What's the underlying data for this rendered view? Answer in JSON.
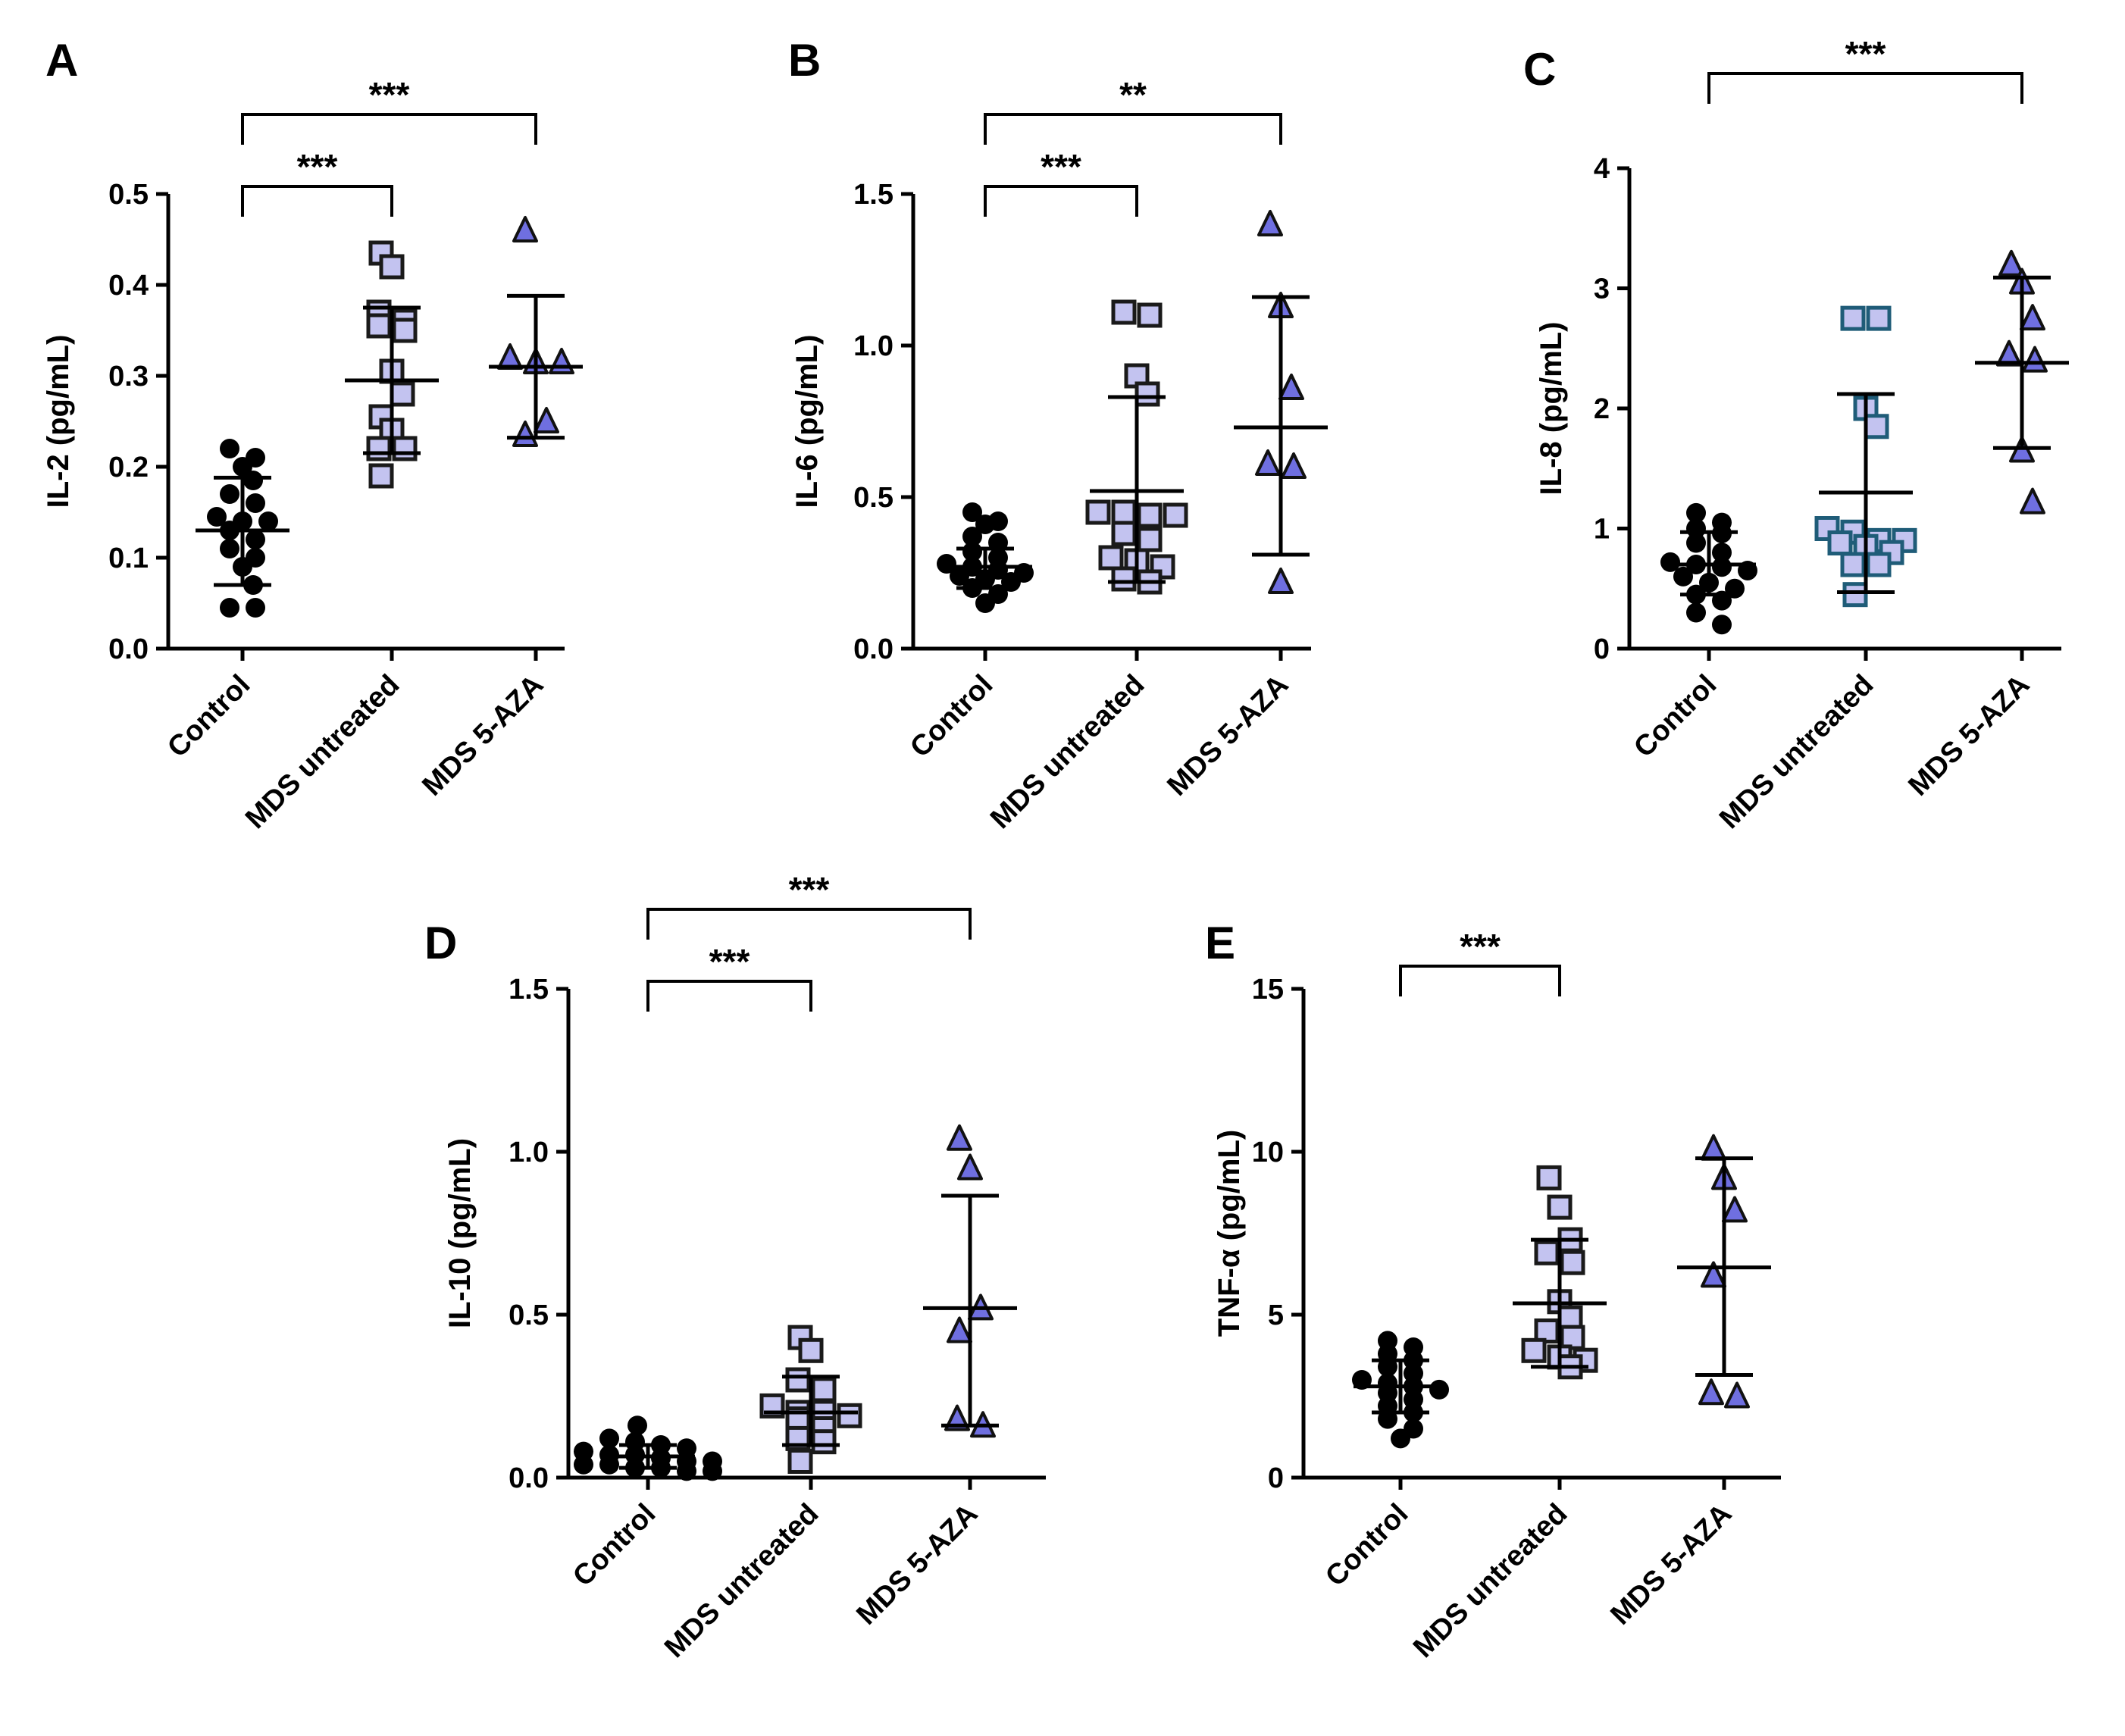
{
  "figure": {
    "background": "#ffffff"
  },
  "colors": {
    "axis": "#000000",
    "control_fill": "#000000",
    "mds_untreated_fill": "#c3c3f0",
    "mds_untreated_stroke": "#1a1a1a",
    "mds_untreated_stroke_c": "#1f5c78",
    "aza_fill": "#6f6fe0",
    "aza_stroke": "#111111"
  },
  "chart_data": [
    {
      "panel": "A",
      "type": "scatter",
      "ylabel": "IL-2 (pg/mL)",
      "ylim": [
        0,
        0.5
      ],
      "yticks": [
        0.0,
        0.1,
        0.2,
        0.3,
        0.4,
        0.5
      ],
      "ytick_labels": [
        "0.0",
        "0.1",
        "0.2",
        "0.3",
        "0.4",
        "0.5"
      ],
      "categories": [
        "Control",
        "MDS untreated",
        "MDS 5-AZA"
      ],
      "series": [
        {
          "name": "Control",
          "marker": "circle",
          "mean": 0.13,
          "sd_low": 0.07,
          "sd_high": 0.188,
          "points": [
            0.22,
            0.21,
            0.2,
            0.185,
            0.17,
            0.16,
            0.145,
            0.14,
            0.14,
            0.13,
            0.12,
            0.11,
            0.1,
            0.09,
            0.07,
            0.045,
            0.045
          ]
        },
        {
          "name": "MDS untreated",
          "marker": "square",
          "mean": 0.295,
          "sd_low": 0.215,
          "sd_high": 0.375,
          "points": [
            0.435,
            0.42,
            0.37,
            0.355,
            0.36,
            0.35,
            0.305,
            0.28,
            0.255,
            0.24,
            0.22,
            0.22,
            0.19
          ]
        },
        {
          "name": "MDS 5-AZA",
          "marker": "triangle",
          "mean": 0.31,
          "sd_low": 0.232,
          "sd_high": 0.388,
          "points": [
            0.46,
            0.32,
            0.315,
            0.315,
            0.25,
            0.235
          ]
        }
      ],
      "significance": [
        {
          "from": 0,
          "to": 1,
          "label": "***"
        },
        {
          "from": 0,
          "to": 2,
          "label": "***"
        }
      ]
    },
    {
      "panel": "B",
      "type": "scatter",
      "ylabel": "IL-6 (pg/mL)",
      "ylim": [
        0,
        1.5
      ],
      "yticks": [
        0.0,
        0.5,
        1.0,
        1.5
      ],
      "ytick_labels": [
        "0.0",
        "0.5",
        "1.0",
        "1.5"
      ],
      "categories": [
        "Control",
        "MDS untreated",
        "MDS 5-AZA"
      ],
      "series": [
        {
          "name": "Control",
          "marker": "circle",
          "mean": 0.27,
          "sd_low": 0.2,
          "sd_high": 0.33,
          "points": [
            0.45,
            0.42,
            0.41,
            0.37,
            0.35,
            0.32,
            0.3,
            0.28,
            0.27,
            0.26,
            0.25,
            0.24,
            0.23,
            0.22,
            0.2,
            0.18,
            0.15
          ]
        },
        {
          "name": "MDS untreated",
          "marker": "square",
          "mean": 0.52,
          "sd_low": 0.22,
          "sd_high": 0.83,
          "points": [
            1.11,
            1.1,
            0.9,
            0.84,
            0.44,
            0.45,
            0.45,
            0.44,
            0.38,
            0.36,
            0.3,
            0.29,
            0.27,
            0.23,
            0.22
          ]
        },
        {
          "name": "MDS 5-AZA",
          "marker": "triangle",
          "mean": 0.73,
          "sd_low": 0.31,
          "sd_high": 1.16,
          "points": [
            1.4,
            1.13,
            0.86,
            0.61,
            0.6,
            0.22
          ]
        }
      ],
      "significance": [
        {
          "from": 0,
          "to": 1,
          "label": "***"
        },
        {
          "from": 0,
          "to": 2,
          "label": "**"
        }
      ]
    },
    {
      "panel": "C",
      "type": "scatter",
      "ylabel": "IL-8 (pg/mL)",
      "ylim": [
        0,
        4
      ],
      "yticks": [
        0,
        1,
        2,
        3,
        4
      ],
      "ytick_labels": [
        "0",
        "1",
        "2",
        "3",
        "4"
      ],
      "categories": [
        "Control",
        "MDS untreated",
        "MDS 5-AZA"
      ],
      "series": [
        {
          "name": "Control",
          "marker": "circle",
          "mean": 0.7,
          "sd_low": 0.45,
          "sd_high": 0.97,
          "points": [
            1.13,
            1.05,
            1.0,
            0.96,
            0.88,
            0.8,
            0.72,
            0.7,
            0.68,
            0.65,
            0.6,
            0.55,
            0.5,
            0.45,
            0.4,
            0.3,
            0.2
          ]
        },
        {
          "name": "MDS untreated",
          "marker": "square",
          "mean": 1.3,
          "sd_low": 0.47,
          "sd_high": 2.12,
          "points": [
            2.75,
            2.75,
            2.0,
            1.85,
            1.0,
            0.97,
            0.9,
            0.9,
            0.88,
            0.85,
            0.8,
            0.7,
            0.7,
            0.45
          ]
        },
        {
          "name": "MDS 5-AZA",
          "marker": "triangle",
          "mean": 2.38,
          "sd_low": 1.67,
          "sd_high": 3.09,
          "points": [
            3.2,
            3.05,
            2.75,
            2.45,
            2.4,
            1.65,
            1.22
          ]
        }
      ],
      "significance": [
        {
          "from": 0,
          "to": 2,
          "label": "***"
        }
      ]
    },
    {
      "panel": "D",
      "type": "scatter",
      "ylabel": "IL-10 (pg/mL)",
      "ylim": [
        0,
        1.5
      ],
      "yticks": [
        0.0,
        0.5,
        1.0,
        1.5
      ],
      "ytick_labels": [
        "0.0",
        "0.5",
        "1.0",
        "1.5"
      ],
      "categories": [
        "Control",
        "MDS untreated",
        "MDS 5-AZA"
      ],
      "series": [
        {
          "name": "Control",
          "marker": "circle",
          "mean": 0.065,
          "sd_low": 0.03,
          "sd_high": 0.1,
          "points": [
            0.16,
            0.12,
            0.11,
            0.1,
            0.09,
            0.08,
            0.07,
            0.07,
            0.06,
            0.05,
            0.05,
            0.04,
            0.04,
            0.03,
            0.03,
            0.02,
            0.02
          ]
        },
        {
          "name": "MDS untreated",
          "marker": "square",
          "mean": 0.2,
          "sd_low": 0.1,
          "sd_high": 0.31,
          "points": [
            0.43,
            0.39,
            0.3,
            0.27,
            0.22,
            0.2,
            0.2,
            0.19,
            0.18,
            0.15,
            0.12,
            0.11,
            0.05
          ]
        },
        {
          "name": "MDS 5-AZA",
          "marker": "triangle",
          "mean": 0.52,
          "sd_low": 0.16,
          "sd_high": 0.865,
          "points": [
            1.04,
            0.95,
            0.52,
            0.45,
            0.18,
            0.16
          ]
        }
      ],
      "significance": [
        {
          "from": 0,
          "to": 1,
          "label": "***"
        },
        {
          "from": 0,
          "to": 2,
          "label": "***"
        }
      ]
    },
    {
      "panel": "E",
      "type": "scatter",
      "ylabel": "TNF-α (pg/mL)",
      "ylim": [
        0,
        15
      ],
      "yticks": [
        0,
        5,
        10,
        15
      ],
      "ytick_labels": [
        "0",
        "5",
        "10",
        "15"
      ],
      "categories": [
        "Control",
        "MDS untreated",
        "MDS 5-AZA"
      ],
      "series": [
        {
          "name": "Control",
          "marker": "circle",
          "mean": 2.8,
          "sd_low": 2.0,
          "sd_high": 3.6,
          "points": [
            4.2,
            4.0,
            3.8,
            3.6,
            3.4,
            3.2,
            3.0,
            2.9,
            2.8,
            2.7,
            2.6,
            2.4,
            2.2,
            2.0,
            1.8,
            1.5,
            1.2
          ]
        },
        {
          "name": "MDS untreated",
          "marker": "square",
          "mean": 5.35,
          "sd_low": 3.4,
          "sd_high": 7.3,
          "points": [
            9.2,
            8.3,
            7.3,
            6.9,
            6.6,
            5.4,
            4.9,
            4.5,
            4.3,
            3.9,
            3.7,
            3.6,
            3.4
          ]
        },
        {
          "name": "MDS 5-AZA",
          "marker": "triangle",
          "mean": 6.45,
          "sd_low": 3.15,
          "sd_high": 9.8,
          "points": [
            10.1,
            9.2,
            8.2,
            6.2,
            2.6,
            2.5
          ]
        }
      ],
      "significance": [
        {
          "from": 0,
          "to": 1,
          "label": "***"
        }
      ]
    }
  ]
}
